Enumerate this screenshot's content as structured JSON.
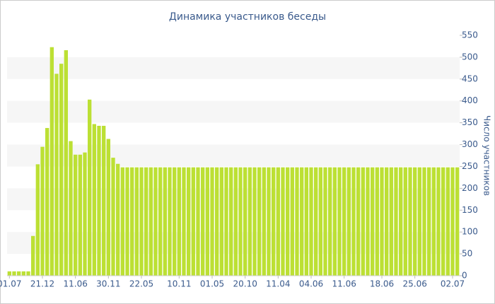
{
  "chart_data": {
    "type": "bar",
    "title": "Динамика участников беседы",
    "y_label": "Число участников",
    "categories": [
      "01.07",
      null,
      null,
      null,
      null,
      null,
      null,
      "21.12",
      null,
      null,
      null,
      null,
      null,
      null,
      "11.06",
      null,
      null,
      null,
      null,
      null,
      null,
      "30.11",
      null,
      null,
      null,
      null,
      null,
      null,
      "22.05",
      null,
      null,
      null,
      null,
      null,
      null,
      null,
      "10.11",
      null,
      null,
      null,
      null,
      null,
      null,
      "01.05",
      null,
      null,
      null,
      null,
      null,
      null,
      "20.10",
      null,
      null,
      null,
      null,
      null,
      null,
      "11.04",
      null,
      null,
      null,
      null,
      null,
      null,
      "04.06",
      null,
      null,
      null,
      null,
      null,
      null,
      "11.06",
      null,
      null,
      null,
      null,
      null,
      null,
      null,
      "18.06",
      null,
      null,
      null,
      null,
      null,
      null,
      "25.06",
      null,
      null,
      null,
      null,
      null,
      null,
      null,
      "02.07",
      null
    ],
    "values": [
      10,
      10,
      10,
      10,
      10,
      91,
      255,
      295,
      338,
      523,
      462,
      485,
      516,
      308,
      277,
      277,
      282,
      403,
      347,
      343,
      343,
      313,
      270,
      256,
      248,
      248,
      248,
      248,
      248,
      248,
      248,
      248,
      248,
      248,
      248,
      248,
      248,
      248,
      248,
      248,
      248,
      248,
      248,
      248,
      248,
      248,
      248,
      248,
      248,
      248,
      248,
      248,
      248,
      248,
      248,
      248,
      248,
      248,
      248,
      248,
      248,
      248,
      248,
      248,
      248,
      248,
      248,
      248,
      248,
      248,
      248,
      248,
      248,
      248,
      248,
      248,
      248,
      248,
      248,
      248,
      248,
      248,
      248,
      248,
      248,
      248,
      248,
      248,
      248,
      248,
      248,
      248,
      248,
      248,
      248,
      248
    ],
    "color": "#bce034",
    "ylim": [
      0,
      550
    ],
    "yticks": [
      0,
      50,
      100,
      150,
      200,
      250,
      300,
      350,
      400,
      450,
      500,
      550
    ],
    "grid": "bands",
    "y_axis_side": "right"
  }
}
